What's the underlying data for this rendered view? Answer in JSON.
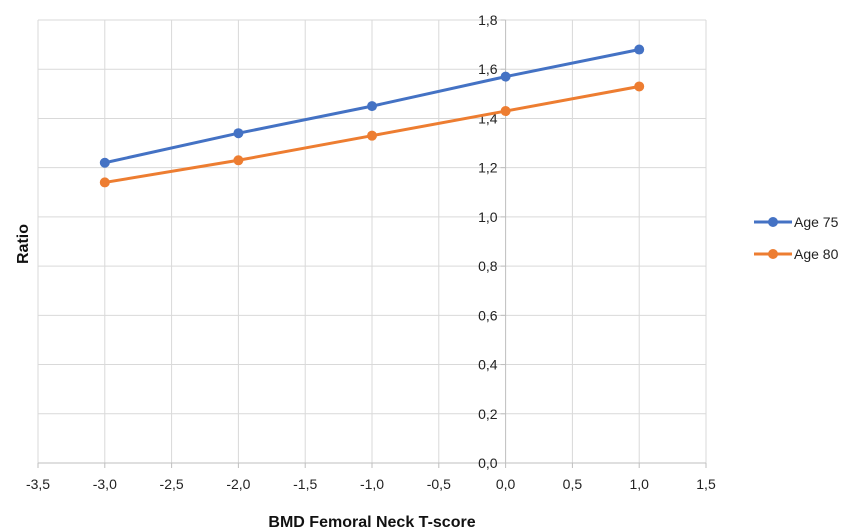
{
  "chart_data": {
    "type": "line",
    "title": "",
    "xlabel": "BMD Femoral Neck T-score",
    "ylabel": "Ratio",
    "xlim": [
      -3.5,
      1.5
    ],
    "ylim": [
      0.0,
      1.8
    ],
    "x_ticks": [
      "-3,5",
      "-3,0",
      "-2,5",
      "-2,0",
      "-1,5",
      "-1,0",
      "-0,5",
      "0,0",
      "0,5",
      "1,0",
      "1,5"
    ],
    "y_ticks": [
      "0,0",
      "0,2",
      "0,4",
      "0,6",
      "0,8",
      "1,0",
      "1,2",
      "1,4",
      "1,6",
      "1,8"
    ],
    "grid": true,
    "legend_position": "right",
    "series": [
      {
        "name": "Age 75",
        "color": "#4472C4",
        "x": [
          -3,
          -2,
          -1,
          0,
          1
        ],
        "y": [
          1.22,
          1.34,
          1.45,
          1.57,
          1.68
        ]
      },
      {
        "name": "Age 80",
        "color": "#ED7D31",
        "x": [
          -3,
          -2,
          -1,
          0,
          1
        ],
        "y": [
          1.14,
          1.23,
          1.33,
          1.43,
          1.53
        ]
      }
    ]
  }
}
